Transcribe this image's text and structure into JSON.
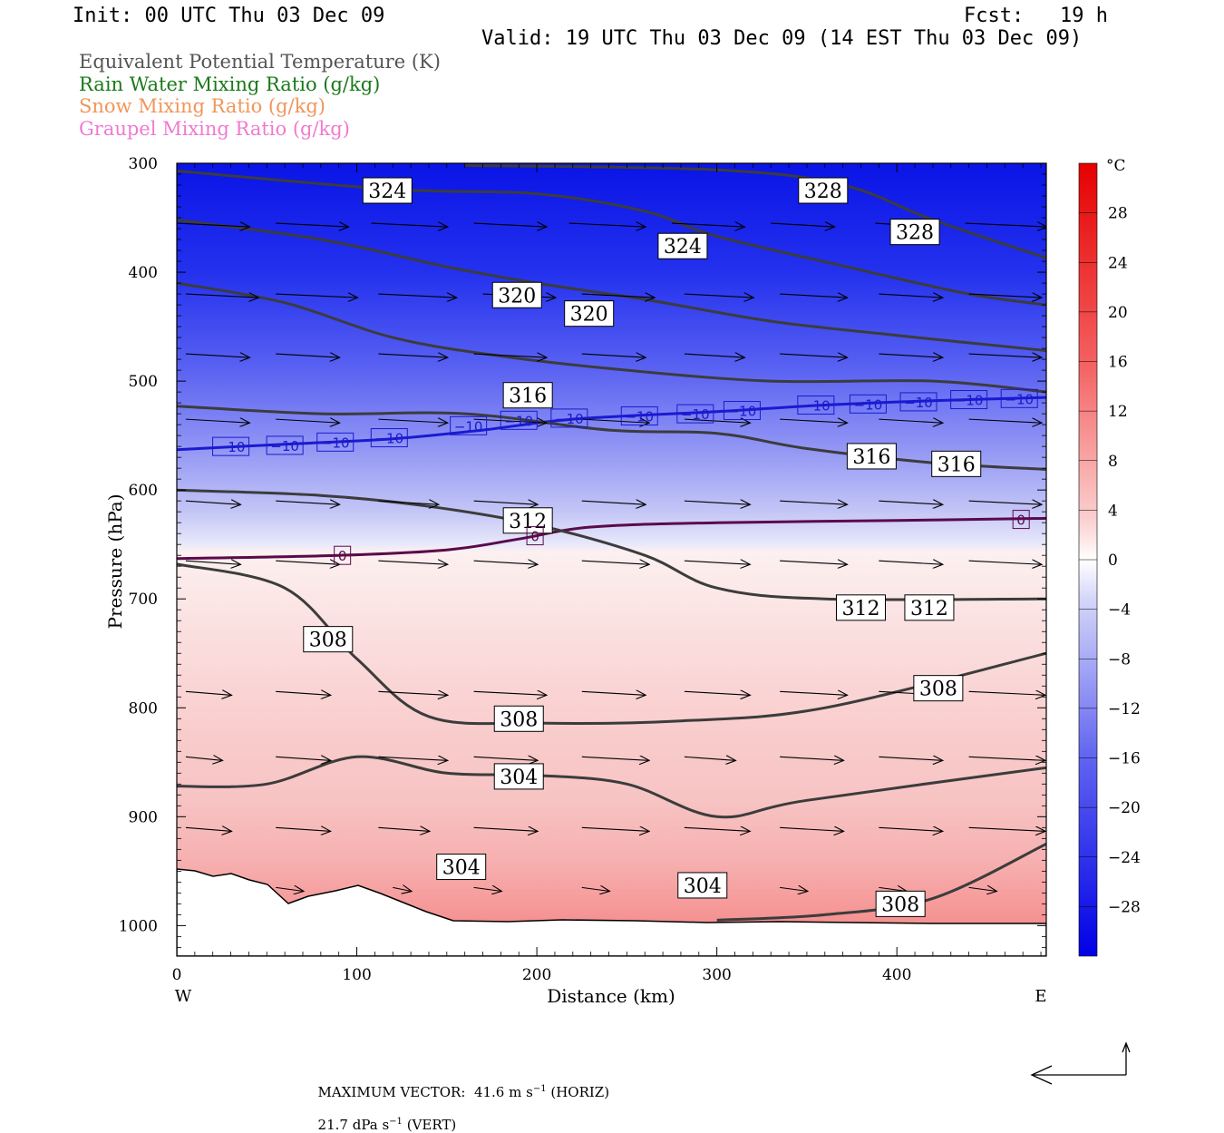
{
  "header": {
    "init": "Init: 00 UTC Thu 03 Dec 09",
    "fcst": "Fcst:   19 h",
    "valid": "Valid: 19 UTC Thu 03 Dec 09 (14 EST Thu 03 Dec 09)"
  },
  "legend": [
    {
      "label": "Equivalent Potential Temperature (K)",
      "color": "#555555"
    },
    {
      "label": "Rain Water Mixing Ratio (g/kg)",
      "color": "#1a7a1a"
    },
    {
      "label": "Snow Mixing Ratio (g/kg)",
      "color": "#f0965a"
    },
    {
      "label": "Graupel Mixing Ratio (g/kg)",
      "color": "#f07ad0"
    }
  ],
  "chart_data": {
    "type": "contour",
    "xlabel": "Distance (km)",
    "ylabel": "Pressure (hPa)",
    "xlim": [
      0,
      483
    ],
    "ylim": [
      1028,
      300
    ],
    "x_ticks": [
      "0",
      "100",
      "200",
      "300",
      "400"
    ],
    "x_tick_values": [
      0,
      100,
      200,
      300,
      400
    ],
    "y_ticks": [
      "300",
      "400",
      "500",
      "600",
      "700",
      "800",
      "900",
      "1000"
    ],
    "y_tick_values": [
      300,
      400,
      500,
      600,
      700,
      800,
      900,
      1000
    ],
    "x_end_labels": {
      "left": "W",
      "right": "E"
    },
    "colorbar": {
      "unit": "°C",
      "tick_labels": [
        "28",
        "24",
        "20",
        "16",
        "12",
        "8",
        "4",
        "0",
        "−4",
        "−8",
        "−12",
        "−16",
        "−20",
        "−24",
        "−28"
      ],
      "tick_values": [
        28,
        24,
        20,
        16,
        12,
        8,
        4,
        0,
        -4,
        -8,
        -12,
        -16,
        -20,
        -24,
        -28
      ],
      "range": [
        -32,
        32
      ]
    },
    "temperature_isotherms": [
      {
        "value": -10,
        "label": "−10",
        "color": "#1a1ad0",
        "points": [
          [
            0,
            563
          ],
          [
            60,
            558
          ],
          [
            120,
            553
          ],
          [
            170,
            545
          ],
          [
            220,
            535
          ],
          [
            300,
            528
          ],
          [
            360,
            522
          ],
          [
            420,
            518
          ],
          [
            483,
            515
          ]
        ],
        "label_at": [
          [
            30,
            560
          ],
          [
            60,
            559
          ],
          [
            88,
            556
          ],
          [
            118,
            552
          ],
          [
            162,
            541
          ],
          [
            190,
            536
          ],
          [
            218,
            534
          ],
          [
            257,
            532
          ],
          [
            288,
            530
          ],
          [
            314,
            527
          ],
          [
            355,
            522
          ],
          [
            384,
            521
          ],
          [
            412,
            519
          ],
          [
            440,
            517
          ],
          [
            468,
            516
          ]
        ]
      },
      {
        "value": 0,
        "label": "0",
        "color": "#5a0a4a",
        "points": [
          [
            0,
            663
          ],
          [
            90,
            660
          ],
          [
            150,
            655
          ],
          [
            190,
            645
          ],
          [
            230,
            634
          ],
          [
            300,
            630
          ],
          [
            400,
            628
          ],
          [
            483,
            626
          ]
        ],
        "label_at": [
          [
            92,
            660
          ],
          [
            199,
            642
          ],
          [
            469,
            627
          ]
        ]
      }
    ],
    "theta_e_contours": [
      {
        "value": 328,
        "labels_at": [
          [
            359,
            325
          ],
          [
            410,
            363
          ]
        ],
        "points": [
          [
            160,
            302
          ],
          [
            300,
            306
          ],
          [
            370,
            320
          ],
          [
            420,
            352
          ],
          [
            483,
            387
          ]
        ]
      },
      {
        "value": 324,
        "labels_at": [
          [
            117,
            325
          ],
          [
            281,
            376
          ]
        ],
        "points": [
          [
            0,
            307
          ],
          [
            120,
            324
          ],
          [
            200,
            328
          ],
          [
            260,
            344
          ],
          [
            300,
            367
          ],
          [
            380,
            398
          ],
          [
            440,
            420
          ],
          [
            483,
            430
          ]
        ]
      },
      {
        "value": 324,
        "labels_at": [],
        "points": [
          [
            0,
            352
          ],
          [
            80,
            370
          ],
          [
            150,
            395
          ],
          [
            200,
            410
          ],
          [
            260,
            425
          ],
          [
            330,
            445
          ],
          [
            400,
            458
          ],
          [
            483,
            472
          ]
        ]
      },
      {
        "value": 320,
        "labels_at": [
          [
            189,
            421
          ],
          [
            229,
            438
          ]
        ],
        "points": [
          [
            0,
            410
          ],
          [
            60,
            428
          ],
          [
            120,
            460
          ],
          [
            180,
            477
          ],
          [
            250,
            490
          ],
          [
            330,
            500
          ],
          [
            420,
            500
          ],
          [
            483,
            510
          ]
        ]
      },
      {
        "value": 316,
        "labels_at": [
          [
            195,
            513
          ],
          [
            386,
            569
          ],
          [
            433,
            576
          ]
        ],
        "points": [
          [
            0,
            523
          ],
          [
            80,
            530
          ],
          [
            160,
            530
          ],
          [
            240,
            545
          ],
          [
            300,
            548
          ],
          [
            350,
            562
          ],
          [
            420,
            575
          ],
          [
            483,
            581
          ]
        ]
      },
      {
        "value": 312,
        "labels_at": [
          [
            195,
            628
          ],
          [
            380,
            708
          ],
          [
            418,
            708
          ]
        ],
        "points": [
          [
            0,
            600
          ],
          [
            80,
            605
          ],
          [
            140,
            615
          ],
          [
            200,
            632
          ],
          [
            260,
            660
          ],
          [
            300,
            690
          ],
          [
            360,
            700
          ],
          [
            483,
            700
          ]
        ]
      },
      {
        "value": 308,
        "labels_at": [
          [
            84,
            737
          ],
          [
            190,
            810
          ],
          [
            423,
            782
          ]
        ],
        "points": [
          [
            0,
            668
          ],
          [
            60,
            690
          ],
          [
            100,
            755
          ],
          [
            140,
            808
          ],
          [
            200,
            814
          ],
          [
            280,
            812
          ],
          [
            360,
            800
          ],
          [
            483,
            750
          ]
        ]
      },
      {
        "value": 304,
        "labels_at": [
          [
            190,
            863
          ],
          [
            158,
            946
          ],
          [
            292,
            963
          ]
        ],
        "points": [
          [
            0,
            872
          ],
          [
            50,
            870
          ],
          [
            100,
            845
          ],
          [
            150,
            860
          ],
          [
            200,
            862
          ],
          [
            250,
            870
          ],
          [
            300,
            900
          ],
          [
            350,
            885
          ],
          [
            483,
            855
          ]
        ]
      },
      {
        "value": 308,
        "labels_at": [
          [
            402,
            980
          ]
        ],
        "points": [
          [
            300,
            995
          ],
          [
            360,
            990
          ],
          [
            420,
            975
          ],
          [
            483,
            925
          ]
        ]
      }
    ],
    "footer": {
      "max_vector_label": "MAXIMUM VECTOR:",
      "horiz_value": "41.6",
      "horiz_unit": "m s",
      "horiz_exp": "−1",
      "horiz_tag": "(HORIZ)",
      "vert_value": "21.7",
      "vert_unit": "dPa s",
      "vert_exp": "−1",
      "vert_tag": "(VERT)"
    }
  }
}
